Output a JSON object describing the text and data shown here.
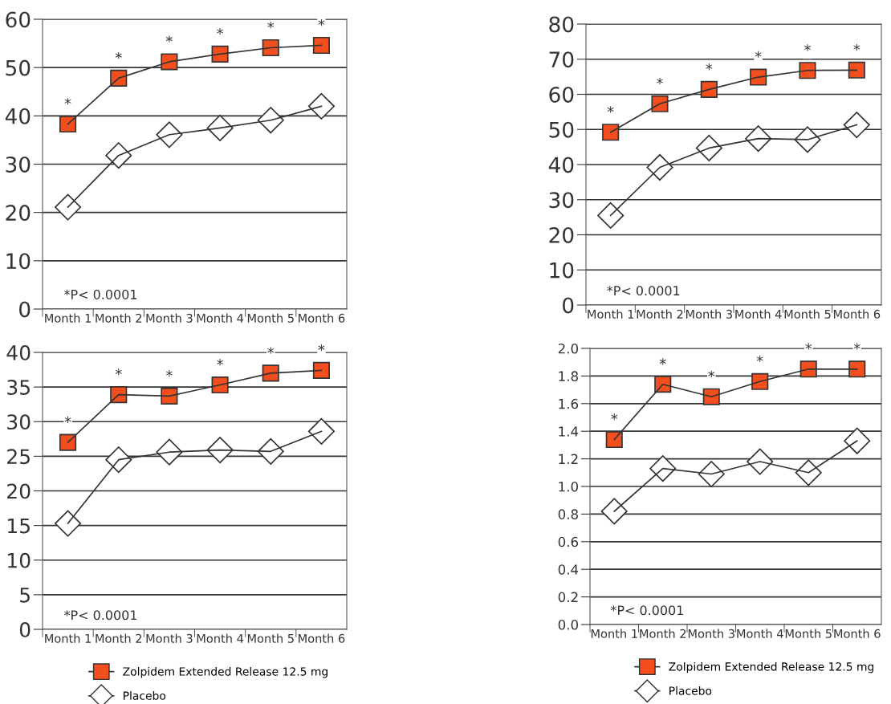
{
  "chart_data": [
    {
      "type": "line",
      "categories": [
        "Month 1",
        "Month 2",
        "Month 3",
        "Month 4",
        "Month 5",
        "Month 6"
      ],
      "ylim": [
        0,
        60
      ],
      "yticks": [
        0,
        10,
        20,
        30,
        40,
        50,
        60
      ],
      "grid": "y",
      "legend": false,
      "series": [
        {
          "color": "#f24e1e",
          "marker": "square",
          "values": [
            38.3,
            47.8,
            51.2,
            52.8,
            54.1,
            54.6
          ]
        },
        {
          "color": "#ffffff",
          "marker": "diamond",
          "values": [
            21.1,
            31.8,
            36.1,
            37.5,
            39.1,
            42.0
          ]
        }
      ],
      "annotations": [
        "*P< 0.0001",
        "*",
        "*",
        "*",
        "*",
        "*",
        "*"
      ]
    },
    {
      "type": "line",
      "categories": [
        "Month 1",
        "Month 2",
        "Month 3",
        "Month 4",
        "Month 5",
        "Month 6"
      ],
      "ylim": [
        0,
        80
      ],
      "yticks": [
        0,
        10,
        20,
        30,
        40,
        50,
        60,
        70,
        80
      ],
      "grid": "y",
      "legend": false,
      "series": [
        {
          "color": "#f24e1e",
          "marker": "square",
          "values": [
            49.2,
            57.3,
            61.4,
            64.9,
            66.8,
            66.9
          ]
        },
        {
          "color": "#ffffff",
          "marker": "diamond",
          "values": [
            25.5,
            39.2,
            44.7,
            47.4,
            47.1,
            51.3
          ]
        }
      ],
      "annotations": [
        "*P< 0.0001",
        "*",
        "*",
        "*",
        "*",
        "*",
        "*"
      ]
    },
    {
      "type": "line",
      "categories": [
        "Month 1",
        "Month 2",
        "Month 3",
        "Month 4",
        "Month 5",
        "Month 6"
      ],
      "ylim": [
        0,
        40
      ],
      "yticks": [
        0,
        5,
        10,
        15,
        20,
        25,
        30,
        35,
        40
      ],
      "grid": "y",
      "legend": "bottom",
      "series": [
        {
          "name": "Zolpidem Extended Release 12.5 mg",
          "color": "#f24e1e",
          "marker": "square",
          "values": [
            27.0,
            33.9,
            33.7,
            35.3,
            37.0,
            37.4
          ]
        },
        {
          "name": "Placebo",
          "color": "#ffffff",
          "marker": "diamond",
          "values": [
            15.3,
            24.5,
            25.6,
            25.9,
            25.7,
            28.6
          ]
        }
      ],
      "annotations": [
        "*P< 0.0001",
        "*",
        "*",
        "*",
        "*",
        "*",
        "*"
      ]
    },
    {
      "type": "line",
      "categories": [
        "Month 1",
        "Month 2",
        "Month 3",
        "Month 4",
        "Month 5",
        "Month 6"
      ],
      "ylim": [
        0,
        2.0
      ],
      "yticks": [
        {
          "value": 0,
          "label": "0.0"
        },
        0.2,
        0.4,
        0.6,
        0.8,
        {
          "value": 1,
          "label": "1.0"
        },
        1.2,
        1.4,
        1.6,
        1.8,
        {
          "value": 2,
          "label": "2.0"
        }
      ],
      "grid": "y",
      "legend": "bottom",
      "series": [
        {
          "name": "Zolpidem Extended Release 12.5 mg",
          "color": "#f24e1e",
          "marker": "square",
          "values": [
            1.34,
            1.74,
            1.65,
            1.76,
            1.85,
            1.85
          ]
        },
        {
          "name": "Placebo",
          "color": "#ffffff",
          "marker": "diamond",
          "values": [
            0.82,
            1.13,
            1.09,
            1.18,
            1.1,
            1.33
          ]
        }
      ],
      "annotations": [
        "*P< 0.0001",
        "*",
        "*",
        "*",
        "*",
        "*",
        "*"
      ]
    }
  ]
}
